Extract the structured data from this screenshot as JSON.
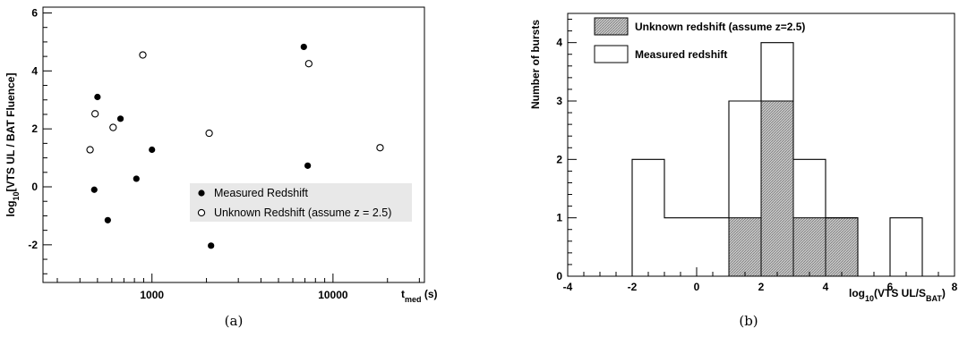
{
  "chart_data": [
    {
      "type": "scatter",
      "title": "",
      "caption": "(a)",
      "xlabel": "t",
      "xlabel_sub": "med",
      "xlabel_unit": " (s)",
      "ylabel_pre": "log",
      "ylabel_sub": "10",
      "ylabel_post": "[VTS UL / BAT Fluence]",
      "xscale": "log",
      "xlim": [
        250,
        32000
      ],
      "ylim": [
        -3.3,
        6.2
      ],
      "xticks": [
        {
          "value": 1000,
          "label": "1000"
        },
        {
          "value": 10000,
          "label": "10000"
        }
      ],
      "yticks": [
        {
          "value": -2,
          "label": "-2"
        },
        {
          "value": 0,
          "label": "0"
        },
        {
          "value": 2,
          "label": "2"
        },
        {
          "value": 4,
          "label": "4"
        },
        {
          "value": 6,
          "label": "6"
        }
      ],
      "grid": false,
      "legend_position": "lower-right",
      "series": [
        {
          "name": "Measured Redshift",
          "marker": "filled-circle",
          "color": "#000000",
          "points": [
            {
              "x": 480,
              "y": -0.1
            },
            {
              "x": 500,
              "y": 3.1
            },
            {
              "x": 570,
              "y": -1.15
            },
            {
              "x": 670,
              "y": 2.35
            },
            {
              "x": 820,
              "y": 0.28
            },
            {
              "x": 1000,
              "y": 1.28
            },
            {
              "x": 2120,
              "y": -2.03
            },
            {
              "x": 6900,
              "y": 4.83
            },
            {
              "x": 7250,
              "y": 0.73
            }
          ]
        },
        {
          "name": "Unknown Redshift (assume z = 2.5)",
          "marker": "open-circle",
          "color": "#000000",
          "points": [
            {
              "x": 455,
              "y": 1.28
            },
            {
              "x": 485,
              "y": 2.52
            },
            {
              "x": 610,
              "y": 2.05
            },
            {
              "x": 890,
              "y": 4.55
            },
            {
              "x": 2070,
              "y": 1.85
            },
            {
              "x": 7350,
              "y": 4.25
            },
            {
              "x": 18200,
              "y": 1.35
            }
          ]
        }
      ]
    },
    {
      "type": "bar",
      "subtype": "step-histogram",
      "title": "",
      "caption": "(b)",
      "xlabel_pre": "log",
      "xlabel_sub": "10",
      "xlabel_mid": "(VTS UL/S",
      "xlabel_sub2": "BAT",
      "xlabel_post": ")",
      "ylabel": "Number of bursts",
      "xlim": [
        -4,
        8
      ],
      "ylim": [
        0,
        4.5
      ],
      "xticks": [
        {
          "value": -4,
          "label": "-4"
        },
        {
          "value": -2,
          "label": "-2"
        },
        {
          "value": 0,
          "label": "0"
        },
        {
          "value": 2,
          "label": "2"
        },
        {
          "value": 4,
          "label": "4"
        },
        {
          "value": 6,
          "label": "6"
        },
        {
          "value": 8,
          "label": "8"
        }
      ],
      "yticks": [
        {
          "value": 0,
          "label": "0"
        },
        {
          "value": 1,
          "label": "1"
        },
        {
          "value": 2,
          "label": "2"
        },
        {
          "value": 3,
          "label": "3"
        },
        {
          "value": 4,
          "label": "4"
        }
      ],
      "grid": false,
      "legend_position": "top-left",
      "bin_edges": [
        -2,
        -1,
        0,
        1,
        2,
        3,
        4,
        5,
        6,
        7
      ],
      "series": [
        {
          "name": "Unknown redshift (assume z=2.5)",
          "style": "hatched-gray-fill",
          "values": [
            0,
            0,
            0,
            1,
            3,
            1,
            1,
            0,
            0
          ]
        },
        {
          "name": "Measured redshift",
          "style": "outline",
          "values": [
            2,
            1,
            1,
            3,
            4,
            2,
            1,
            0,
            1
          ]
        }
      ]
    }
  ]
}
